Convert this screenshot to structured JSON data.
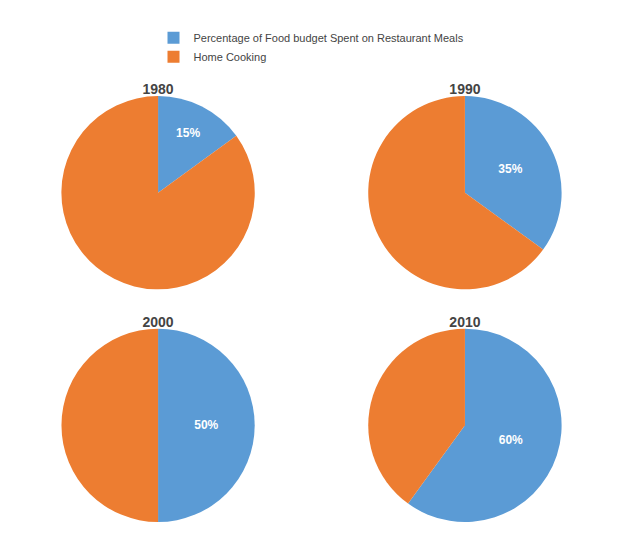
{
  "chart_data": [
    {
      "type": "pie",
      "title": "1980",
      "categories": [
        "Percentage of Food budget Spent on Restaurant Meals",
        "Home Cooking"
      ],
      "values": [
        15,
        85
      ],
      "value_labels": [
        "15%",
        null
      ],
      "colors": [
        "#5B9BD5",
        "#ED7D31"
      ],
      "data_labels": true,
      "legend": "top"
    },
    {
      "type": "pie",
      "title": "1990",
      "categories": [
        "Percentage of Food budget Spent on Restaurant Meals",
        "Home Cooking"
      ],
      "values": [
        35,
        65
      ],
      "value_labels": [
        "35%",
        null
      ],
      "colors": [
        "#5B9BD5",
        "#ED7D31"
      ],
      "data_labels": true,
      "legend": "top"
    },
    {
      "type": "pie",
      "title": "2000",
      "categories": [
        "Percentage of Food budget Spent on Restaurant Meals",
        "Home Cooking"
      ],
      "values": [
        50,
        50
      ],
      "value_labels": [
        "50%",
        null
      ],
      "colors": [
        "#5B9BD5",
        "#ED7D31"
      ],
      "data_labels": true,
      "legend": "top"
    },
    {
      "type": "pie",
      "title": "2010",
      "categories": [
        "Percentage of Food budget Spent on Restaurant Meals",
        "Home Cooking"
      ],
      "values": [
        60,
        40
      ],
      "value_labels": [
        "60%",
        null
      ],
      "colors": [
        "#5B9BD5",
        "#ED7D31"
      ],
      "data_labels": true,
      "legend": "top"
    }
  ]
}
